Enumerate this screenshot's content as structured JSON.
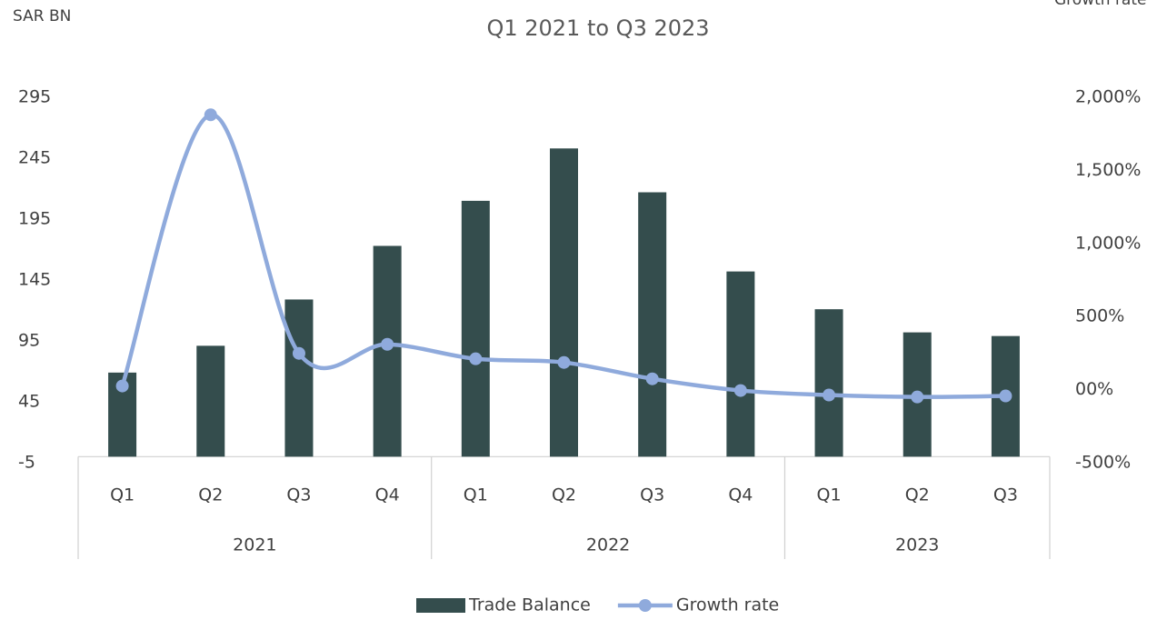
{
  "chart_data": {
    "type": "bar-line",
    "title": "Q1 2021 to Q3 2023",
    "y_label": "SAR BN",
    "y2_label": "Growth rate",
    "groups": [
      {
        "label": "2021",
        "categories": [
          "Q1",
          "Q2",
          "Q3",
          "Q4"
        ]
      },
      {
        "label": "2022",
        "categories": [
          "Q1",
          "Q2",
          "Q3",
          "Q4"
        ]
      },
      {
        "label": "2023",
        "categories": [
          "Q1",
          "Q2",
          "Q3"
        ]
      }
    ],
    "series": [
      {
        "name": "Trade Balance",
        "type": "bar",
        "color": "#344d4d",
        "values": [
          69,
          91,
          129,
          173,
          210,
          253,
          217,
          152,
          121,
          102,
          99
        ]
      },
      {
        "name": "Growth rate",
        "type": "line",
        "axis": "y2",
        "color": "#8faadc",
        "values": [
          25,
          1880,
          248,
          310,
          211,
          186,
          74,
          -6,
          -37,
          -50,
          -43
        ]
      }
    ],
    "ylim": [
      -5,
      295
    ],
    "yticks": [
      -5,
      45,
      95,
      145,
      195,
      245,
      295
    ],
    "y2lim": [
      -500,
      2000
    ],
    "y2ticks": [
      {
        "value": -500,
        "label": "-500%"
      },
      {
        "value": 0,
        "label": "00%"
      },
      {
        "value": 500,
        "label": "500%"
      },
      {
        "value": 1000,
        "label": "1,000%"
      },
      {
        "value": 1500,
        "label": "1,500%"
      },
      {
        "value": 2000,
        "label": "2,000%"
      }
    ],
    "legend": "bottom"
  }
}
